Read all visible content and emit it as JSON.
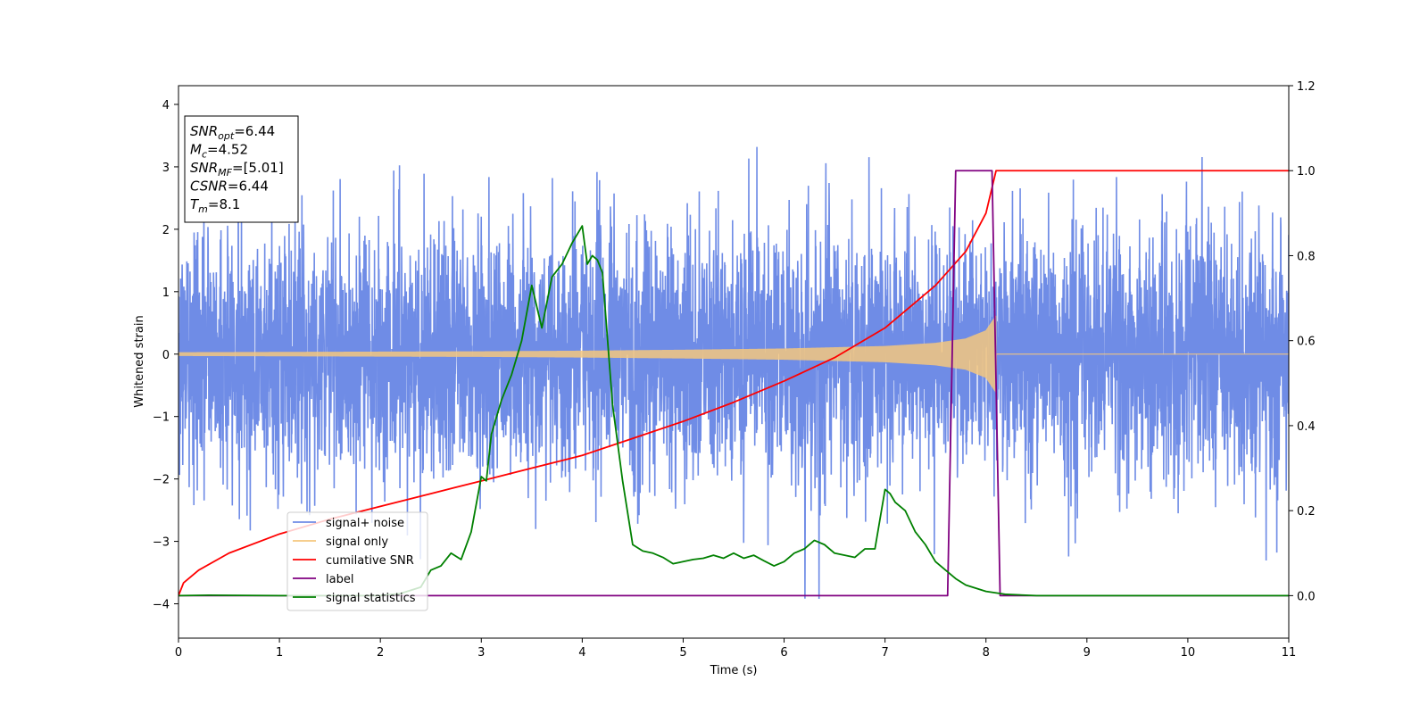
{
  "chart_data": {
    "type": "line",
    "xlabel": "Time (s)",
    "ylabel": "Whitened strain",
    "xlim": [
      0,
      11
    ],
    "ylim_left": [
      -4.55,
      4.3
    ],
    "ylim_right": [
      -0.1,
      1.2
    ],
    "xticks": [
      0,
      1,
      2,
      3,
      4,
      5,
      6,
      7,
      8,
      9,
      10,
      11
    ],
    "yticks_left": [
      -4,
      -3,
      -2,
      -1,
      0,
      1,
      2,
      3,
      4
    ],
    "yticks_right": [
      0.0,
      0.2,
      0.4,
      0.6,
      0.8,
      1.0,
      1.2
    ],
    "yticks_right_labels": [
      "0.0",
      "0.2",
      "0.4",
      "0.6",
      "0.8",
      "1.0",
      "1.2"
    ],
    "info_box": {
      "lines": [
        {
          "var": "SNR",
          "sub": "opt",
          "value": "=6.44"
        },
        {
          "var": "M",
          "sub": "c",
          "value": "=4.52"
        },
        {
          "var": "SNR",
          "sub": "MF",
          "value": "=[5.01]"
        },
        {
          "var": "CSNR",
          "sub": "",
          "value": "=6.44"
        },
        {
          "var": "T",
          "sub": "m",
          "value": "=8.1"
        }
      ]
    },
    "legend": {
      "placement": "lower-left",
      "entries": [
        {
          "label": "signal+ noise",
          "color": "#6f8ce6"
        },
        {
          "label": "signal only",
          "color": "#f5c77e"
        },
        {
          "label": "cumilative SNR",
          "color": "#ff0000"
        },
        {
          "label": "label",
          "color": "#800080"
        },
        {
          "label": "signal statistics",
          "color": "#008000"
        }
      ]
    },
    "series": [
      {
        "name": "signal+ noise",
        "axis": "left",
        "color": "#6f8ce6",
        "kind": "noise",
        "duration": 11,
        "std": 1.0,
        "max_abs": 3.92
      },
      {
        "name": "signal only",
        "axis": "left",
        "color": "#f5c77e",
        "kind": "chirp",
        "t_merge": 8.1,
        "envelope": {
          "t": [
            0,
            1,
            2,
            3,
            4,
            5,
            6,
            7,
            7.5,
            7.8,
            8.0,
            8.1
          ],
          "amp": [
            0.03,
            0.035,
            0.04,
            0.045,
            0.055,
            0.07,
            0.09,
            0.13,
            0.18,
            0.25,
            0.38,
            0.62
          ]
        }
      },
      {
        "name": "cumilative SNR",
        "axis": "right",
        "color": "#ff0000",
        "x": [
          0,
          0.05,
          0.2,
          0.5,
          1,
          1.5,
          2,
          2.5,
          3,
          3.5,
          4,
          4.5,
          5,
          5.5,
          6,
          6.5,
          7,
          7.5,
          7.8,
          8.0,
          8.1,
          11
        ],
        "y": [
          0.0,
          0.03,
          0.06,
          0.1,
          0.145,
          0.18,
          0.21,
          0.24,
          0.27,
          0.3,
          0.33,
          0.37,
          0.41,
          0.455,
          0.505,
          0.56,
          0.63,
          0.73,
          0.81,
          0.9,
          1.0,
          1.0
        ]
      },
      {
        "name": "label",
        "axis": "right",
        "color": "#800080",
        "x": [
          0,
          7.62,
          7.7,
          8.06,
          8.14,
          11
        ],
        "y": [
          0.0,
          0.0,
          1.0,
          1.0,
          0.0,
          0.0
        ]
      },
      {
        "name": "signal statistics",
        "axis": "right",
        "color": "#008000",
        "x": [
          0,
          0.3,
          1,
          2,
          2.2,
          2.4,
          2.5,
          2.6,
          2.7,
          2.8,
          2.9,
          3.0,
          3.05,
          3.1,
          3.2,
          3.3,
          3.4,
          3.5,
          3.6,
          3.7,
          3.8,
          3.9,
          4.0,
          4.05,
          4.1,
          4.15,
          4.2,
          4.3,
          4.4,
          4.5,
          4.6,
          4.7,
          4.8,
          4.9,
          5.0,
          5.1,
          5.2,
          5.3,
          5.4,
          5.5,
          5.6,
          5.7,
          5.8,
          5.9,
          6.0,
          6.1,
          6.2,
          6.3,
          6.4,
          6.5,
          6.6,
          6.7,
          6.8,
          6.9,
          7.0,
          7.05,
          7.1,
          7.2,
          7.3,
          7.4,
          7.5,
          7.6,
          7.7,
          7.8,
          8.0,
          8.2,
          8.5,
          9,
          10,
          11
        ],
        "y": [
          0.0,
          0.001,
          0.0,
          0.0,
          0.005,
          0.02,
          0.06,
          0.07,
          0.1,
          0.085,
          0.15,
          0.28,
          0.27,
          0.38,
          0.46,
          0.52,
          0.6,
          0.73,
          0.63,
          0.75,
          0.78,
          0.83,
          0.87,
          0.78,
          0.8,
          0.79,
          0.76,
          0.45,
          0.27,
          0.12,
          0.105,
          0.1,
          0.09,
          0.075,
          0.08,
          0.085,
          0.088,
          0.095,
          0.088,
          0.1,
          0.088,
          0.095,
          0.082,
          0.07,
          0.08,
          0.1,
          0.11,
          0.13,
          0.12,
          0.1,
          0.095,
          0.09,
          0.11,
          0.11,
          0.25,
          0.24,
          0.22,
          0.2,
          0.15,
          0.12,
          0.08,
          0.06,
          0.04,
          0.025,
          0.01,
          0.003,
          0.0,
          0.0,
          0.0,
          0.0
        ]
      }
    ]
  }
}
